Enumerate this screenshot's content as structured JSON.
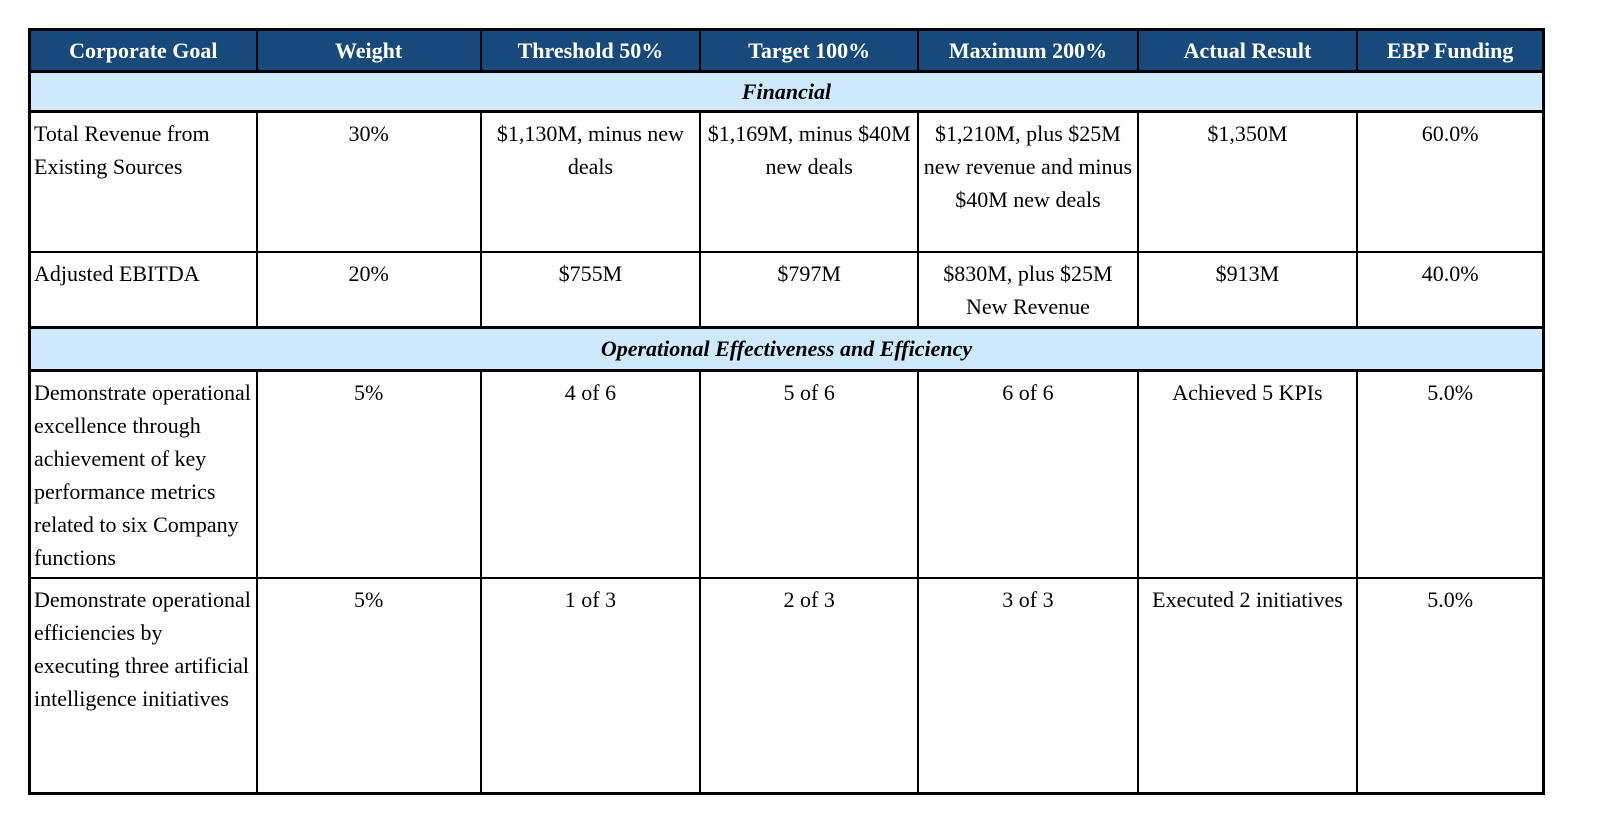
{
  "table": {
    "colors": {
      "header_bg": "#17497B",
      "header_text": "#FFFFFF",
      "section_bg": "#CDE9FB",
      "border": "#000000",
      "body_text": "#000000"
    },
    "columns": [
      "Corporate Goal",
      "Weight",
      "Threshold 50%",
      "Target 100%",
      "Maximum 200%",
      "Actual Result",
      "EBP Funding"
    ],
    "sections": [
      {
        "title": "Financial",
        "rows": [
          {
            "cells": [
              "Total Revenue from Existing Sources",
              "30%",
              "$1,130M, minus new deals",
              "$1,169M, minus $40M new deals",
              "$1,210M, plus $25M new revenue and minus $40M new deals",
              "$1,350M",
              "60.0%"
            ]
          },
          {
            "cells": [
              "Adjusted EBITDA",
              "20%",
              "$755M",
              "$797M",
              "$830M, plus $25M New Revenue",
              "$913M",
              "40.0%"
            ]
          }
        ]
      },
      {
        "title": "Operational Effectiveness and Efficiency",
        "rows": [
          {
            "cells": [
              "Demonstrate operational excellence through achievement of key performance metrics related to six Company functions",
              "5%",
              "4 of 6",
              "5 of 6",
              "6 of 6",
              "Achieved 5 KPIs",
              "5.0%"
            ]
          },
          {
            "cells": [
              "Demonstrate operational efficiencies by executing three artificial intelligence initiatives",
              "5%",
              "1 of 3",
              "2 of 3",
              "3 of 3",
              "Executed 2 initiatives",
              "5.0%"
            ]
          }
        ]
      }
    ]
  }
}
